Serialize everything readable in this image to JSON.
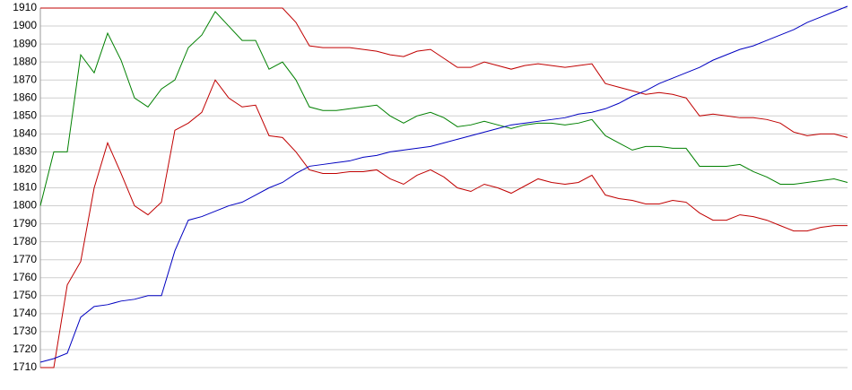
{
  "chart_data": {
    "type": "line",
    "ylim": [
      1710,
      1910
    ],
    "yticks": [
      1710,
      1720,
      1730,
      1740,
      1750,
      1760,
      1770,
      1780,
      1790,
      1800,
      1810,
      1820,
      1830,
      1840,
      1850,
      1860,
      1870,
      1880,
      1890,
      1900,
      1910
    ],
    "grid": true,
    "series": [
      {
        "color": "#c00000",
        "values": [
          1910,
          1910,
          1910,
          1910,
          1910,
          1910,
          1910,
          1910,
          1910,
          1910,
          1910,
          1910,
          1910,
          1910,
          1910,
          1910,
          1910,
          1910,
          1910,
          1902,
          1889,
          1888,
          1888,
          1888,
          1887,
          1886,
          1884,
          1883,
          1886,
          1887,
          1882,
          1877,
          1877,
          1880,
          1878,
          1876,
          1878,
          1879,
          1878,
          1877,
          1878,
          1879,
          1868,
          1866,
          1864,
          1862,
          1863,
          1862,
          1860,
          1850,
          1851,
          1850,
          1849,
          1849,
          1848,
          1846,
          1841,
          1839,
          1840,
          1840,
          1838
        ]
      },
      {
        "color": "#008000",
        "values": [
          1800,
          1830,
          1830,
          1884,
          1874,
          1896,
          1881,
          1860,
          1855,
          1865,
          1870,
          1888,
          1895,
          1908,
          1900,
          1892,
          1892,
          1876,
          1880,
          1870,
          1855,
          1853,
          1853,
          1854,
          1855,
          1856,
          1850,
          1846,
          1850,
          1852,
          1849,
          1844,
          1845,
          1847,
          1845,
          1843,
          1845,
          1846,
          1846,
          1845,
          1846,
          1848,
          1839,
          1835,
          1831,
          1833,
          1833,
          1832,
          1832,
          1822,
          1822,
          1822,
          1823,
          1819,
          1816,
          1812,
          1812,
          1813,
          1814,
          1815,
          1813
        ]
      },
      {
        "color": "#c00000",
        "values": [
          1710,
          1710,
          1756,
          1769,
          1810,
          1835,
          1818,
          1800,
          1795,
          1802,
          1842,
          1846,
          1852,
          1870,
          1860,
          1855,
          1856,
          1839,
          1838,
          1830,
          1820,
          1818,
          1818,
          1819,
          1819,
          1820,
          1815,
          1812,
          1817,
          1820,
          1816,
          1810,
          1808,
          1812,
          1810,
          1807,
          1811,
          1815,
          1813,
          1812,
          1813,
          1817,
          1806,
          1804,
          1803,
          1801,
          1801,
          1803,
          1802,
          1796,
          1792,
          1792,
          1795,
          1794,
          1792,
          1789,
          1786,
          1786,
          1788,
          1789,
          1789
        ]
      },
      {
        "color": "#0000c0",
        "values": [
          1713,
          1715,
          1718,
          1738,
          1744,
          1745,
          1747,
          1748,
          1750,
          1750,
          1775,
          1792,
          1794,
          1797,
          1800,
          1802,
          1806,
          1810,
          1813,
          1818,
          1822,
          1823,
          1824,
          1825,
          1827,
          1828,
          1830,
          1831,
          1832,
          1833,
          1835,
          1837,
          1839,
          1841,
          1843,
          1845,
          1846,
          1847,
          1848,
          1849,
          1851,
          1852,
          1854,
          1857,
          1861,
          1864,
          1868,
          1871,
          1874,
          1877,
          1881,
          1884,
          1887,
          1889,
          1892,
          1895,
          1898,
          1902,
          1905,
          1908,
          1911
        ]
      }
    ]
  }
}
